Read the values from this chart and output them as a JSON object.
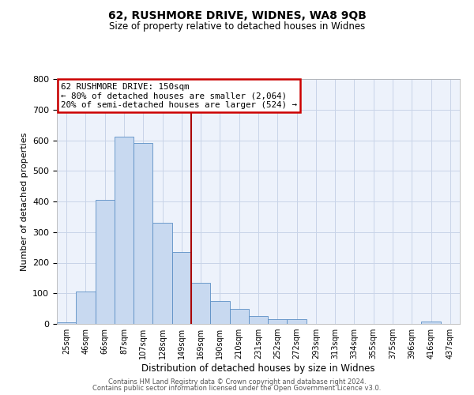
{
  "title": "62, RUSHMORE DRIVE, WIDNES, WA8 9QB",
  "subtitle": "Size of property relative to detached houses in Widnes",
  "xlabel": "Distribution of detached houses by size in Widnes",
  "ylabel": "Number of detached properties",
  "bar_labels": [
    "25sqm",
    "46sqm",
    "66sqm",
    "87sqm",
    "107sqm",
    "128sqm",
    "149sqm",
    "169sqm",
    "190sqm",
    "210sqm",
    "231sqm",
    "252sqm",
    "272sqm",
    "293sqm",
    "313sqm",
    "334sqm",
    "355sqm",
    "375sqm",
    "396sqm",
    "416sqm",
    "437sqm"
  ],
  "bar_heights": [
    5,
    105,
    405,
    612,
    590,
    330,
    235,
    135,
    76,
    50,
    25,
    15,
    15,
    0,
    0,
    0,
    0,
    0,
    0,
    8,
    0
  ],
  "bar_color": "#c8d9f0",
  "bar_edgecolor": "#5b8ec4",
  "vline_x": 6.5,
  "vline_color": "#aa0000",
  "ylim": [
    0,
    800
  ],
  "yticks": [
    0,
    100,
    200,
    300,
    400,
    500,
    600,
    700,
    800
  ],
  "annotation_line1": "62 RUSHMORE DRIVE: 150sqm",
  "annotation_line2": "← 80% of detached houses are smaller (2,064)",
  "annotation_line3": "20% of semi-detached houses are larger (524) →",
  "annotation_box_color": "#ffffff",
  "annotation_box_edgecolor": "#cc0000",
  "footer1": "Contains HM Land Registry data © Crown copyright and database right 2024.",
  "footer2": "Contains public sector information licensed under the Open Government Licence v3.0.",
  "bg_color": "#edf2fb"
}
